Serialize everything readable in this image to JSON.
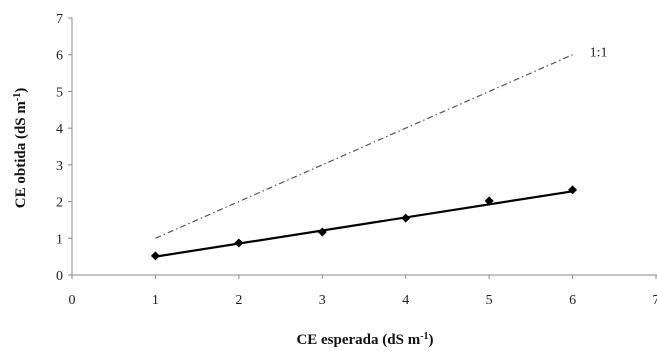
{
  "chart_data": {
    "type": "scatter",
    "xlabel": "CE esperada (dS m",
    "xlabel_sup": "-1",
    "xlabel_end": ")",
    "ylabel": "CE obtida (dS m",
    "ylabel_sup": "-1",
    "ylabel_end": ")",
    "xlim": [
      0,
      7
    ],
    "ylim": [
      0,
      7
    ],
    "x_ticks": [
      0,
      1,
      2,
      3,
      4,
      5,
      6,
      7
    ],
    "y_ticks": [
      0,
      1,
      2,
      3,
      4,
      5,
      6,
      7
    ],
    "grid": false,
    "series": [
      {
        "kind": "points_with_fit",
        "x": [
          1,
          2,
          3,
          4,
          5,
          6
        ],
        "y": [
          0.52,
          0.87,
          1.17,
          1.55,
          2.02,
          2.32
        ],
        "fit_line": {
          "x": [
            1,
            6
          ],
          "y": [
            0.5,
            2.28
          ]
        },
        "color": "#000000"
      },
      {
        "kind": "reference_line",
        "label": "1:1",
        "x": [
          1,
          6
        ],
        "y": [
          1,
          6
        ],
        "color": "#555555",
        "dash": "dashdot"
      }
    ]
  }
}
